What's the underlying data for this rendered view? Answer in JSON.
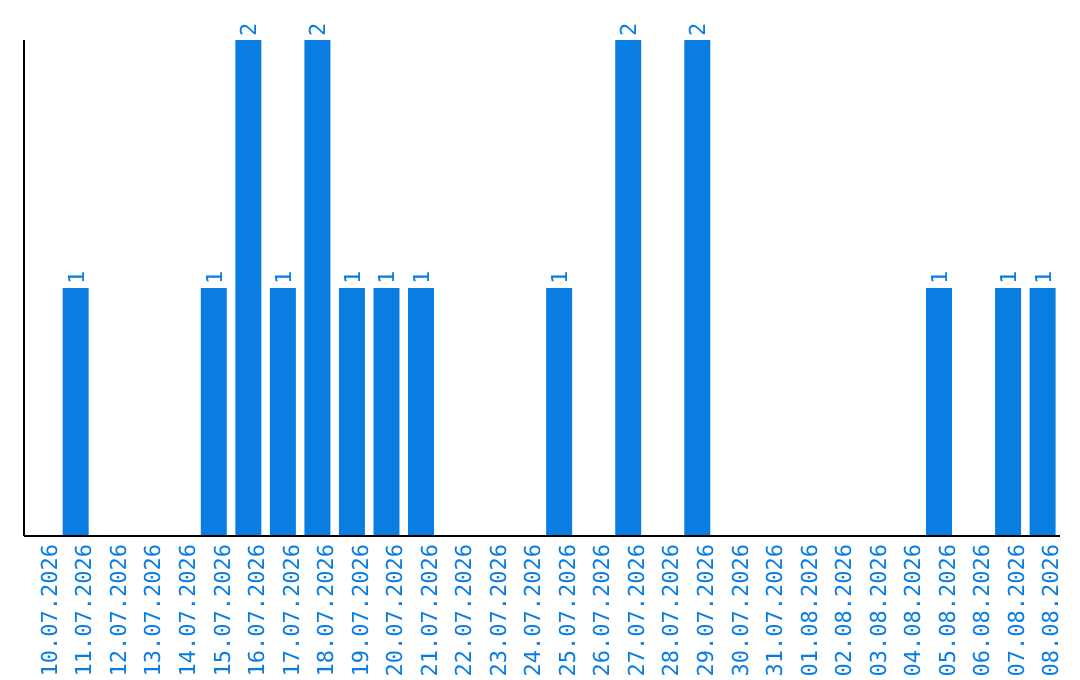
{
  "chart_data": {
    "type": "bar",
    "categories": [
      "10.07.2026",
      "11.07.2026",
      "12.07.2026",
      "13.07.2026",
      "14.07.2026",
      "15.07.2026",
      "16.07.2026",
      "17.07.2026",
      "18.07.2026",
      "19.07.2026",
      "20.07.2026",
      "21.07.2026",
      "22.07.2026",
      "23.07.2026",
      "24.07.2026",
      "25.07.2026",
      "26.07.2026",
      "27.07.2026",
      "28.07.2026",
      "29.07.2026",
      "30.07.2026",
      "31.07.2026",
      "01.08.2026",
      "02.08.2026",
      "03.08.2026",
      "04.08.2026",
      "05.08.2026",
      "06.08.2026",
      "07.08.2026",
      "08.08.2026"
    ],
    "values": [
      0,
      1,
      0,
      0,
      0,
      1,
      2,
      1,
      2,
      1,
      1,
      1,
      0,
      0,
      0,
      1,
      0,
      2,
      0,
      2,
      0,
      0,
      0,
      0,
      0,
      0,
      1,
      0,
      1,
      1
    ],
    "value_labels": [
      null,
      "1",
      null,
      null,
      null,
      "1",
      "2",
      "1",
      "2",
      "1",
      "1",
      "1",
      null,
      null,
      null,
      "1",
      null,
      "2",
      null,
      "2",
      null,
      null,
      null,
      null,
      null,
      null,
      "1",
      null,
      "1",
      "1"
    ],
    "color": "#0a7de3",
    "ylim": [
      0,
      2
    ],
    "tick_labels": "x",
    "grid": false,
    "legend": false
  }
}
